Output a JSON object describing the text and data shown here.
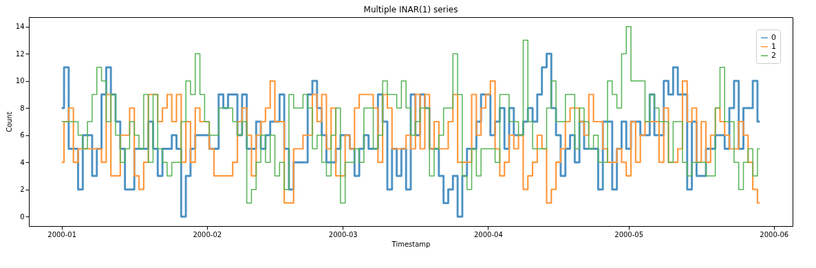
{
  "chart_data": {
    "type": "step",
    "title": "Multiple INAR(1) series",
    "xlabel": "Timestamp",
    "ylabel": "Count",
    "x": [
      "2000-01-01",
      "2000-01-02",
      "2000-01-03",
      "2000-01-04",
      "2000-01-05",
      "2000-01-06",
      "2000-01-07",
      "2000-01-08",
      "2000-01-09",
      "2000-01-10",
      "2000-01-11",
      "2000-01-12",
      "2000-01-13",
      "2000-01-14",
      "2000-01-15",
      "2000-01-16",
      "2000-01-17",
      "2000-01-18",
      "2000-01-19",
      "2000-01-20",
      "2000-01-21",
      "2000-01-22",
      "2000-01-23",
      "2000-01-24",
      "2000-01-25",
      "2000-01-26",
      "2000-01-27",
      "2000-01-28",
      "2000-01-29",
      "2000-01-30",
      "2000-01-31",
      "2000-02-01",
      "2000-02-02",
      "2000-02-03",
      "2000-02-04",
      "2000-02-05",
      "2000-02-06",
      "2000-02-07",
      "2000-02-08",
      "2000-02-09",
      "2000-02-10",
      "2000-02-11",
      "2000-02-12",
      "2000-02-13",
      "2000-02-14",
      "2000-02-15",
      "2000-02-16",
      "2000-02-17",
      "2000-02-18",
      "2000-02-19",
      "2000-02-20",
      "2000-02-21",
      "2000-02-22",
      "2000-02-23",
      "2000-02-24",
      "2000-02-25",
      "2000-02-26",
      "2000-02-27",
      "2000-02-28",
      "2000-02-29",
      "2000-03-01",
      "2000-03-02",
      "2000-03-03",
      "2000-03-04",
      "2000-03-05",
      "2000-03-06",
      "2000-03-07",
      "2000-03-08",
      "2000-03-09",
      "2000-03-10",
      "2000-03-11",
      "2000-03-12",
      "2000-03-13",
      "2000-03-14",
      "2000-03-15",
      "2000-03-16",
      "2000-03-17",
      "2000-03-18",
      "2000-03-19",
      "2000-03-20",
      "2000-03-21",
      "2000-03-22",
      "2000-03-23",
      "2000-03-24",
      "2000-03-25",
      "2000-03-26",
      "2000-03-27",
      "2000-03-28",
      "2000-03-29",
      "2000-03-30",
      "2000-03-31",
      "2000-04-01",
      "2000-04-02",
      "2000-04-03",
      "2000-04-04",
      "2000-04-05",
      "2000-04-06",
      "2000-04-07",
      "2000-04-08",
      "2000-04-09",
      "2000-04-10",
      "2000-04-11",
      "2000-04-12",
      "2000-04-13",
      "2000-04-14",
      "2000-04-15",
      "2000-04-16",
      "2000-04-17",
      "2000-04-18",
      "2000-04-19",
      "2000-04-20",
      "2000-04-21",
      "2000-04-22",
      "2000-04-23",
      "2000-04-24",
      "2000-04-25",
      "2000-04-26",
      "2000-04-27",
      "2000-04-28",
      "2000-04-29",
      "2000-04-30",
      "2000-05-01",
      "2000-05-02",
      "2000-05-03",
      "2000-05-04",
      "2000-05-05",
      "2000-05-06",
      "2000-05-07",
      "2000-05-08",
      "2000-05-09",
      "2000-05-10",
      "2000-05-11",
      "2000-05-12",
      "2000-05-13",
      "2000-05-14",
      "2000-05-15",
      "2000-05-16",
      "2000-05-17",
      "2000-05-18",
      "2000-05-19",
      "2000-05-20",
      "2000-05-21",
      "2000-05-22",
      "2000-05-23",
      "2000-05-24",
      "2000-05-25",
      "2000-05-26",
      "2000-05-27",
      "2000-05-28",
      "2000-05-29"
    ],
    "series": [
      {
        "name": "0",
        "color": "#4c92c3",
        "values": [
          8,
          11,
          5,
          5,
          2,
          6,
          6,
          3,
          5,
          9,
          11,
          9,
          7,
          5,
          2,
          2,
          5,
          5,
          5,
          7,
          5,
          3,
          5,
          5,
          6,
          5,
          0,
          3,
          5,
          6,
          6,
          6,
          5,
          5,
          9,
          8,
          9,
          9,
          6,
          9,
          5,
          5,
          7,
          5,
          6,
          7,
          7,
          9,
          5,
          2,
          4,
          4,
          4,
          9,
          10,
          8,
          6,
          4,
          4,
          5,
          6,
          6,
          5,
          3,
          5,
          6,
          5,
          5,
          9,
          7,
          2,
          5,
          3,
          5,
          2,
          9,
          6,
          9,
          8,
          5,
          5,
          3,
          1,
          2,
          3,
          0,
          3,
          5,
          5,
          7,
          9,
          9,
          6,
          7,
          8,
          5,
          8,
          6,
          6,
          7,
          8,
          7,
          9,
          11,
          12,
          8,
          6,
          3,
          5,
          6,
          4,
          7,
          5,
          5,
          5,
          2,
          7,
          7,
          2,
          5,
          7,
          5,
          7,
          7,
          6,
          6,
          9,
          6,
          6,
          10,
          9,
          11,
          9,
          9,
          2,
          7,
          3,
          3,
          5,
          5,
          6,
          6,
          5,
          8,
          10,
          5,
          8,
          8,
          10,
          7
        ]
      },
      {
        "name": "1",
        "color": "#ff993e",
        "values": [
          4,
          7,
          8,
          4,
          5,
          5,
          5,
          5,
          5,
          4,
          9,
          3,
          3,
          6,
          6,
          8,
          3,
          2,
          4,
          9,
          9,
          7,
          8,
          9,
          7,
          9,
          4,
          7,
          4,
          8,
          7,
          7,
          5,
          3,
          3,
          3,
          3,
          4,
          7,
          8,
          6,
          3,
          6,
          7,
          8,
          10,
          7,
          7,
          1,
          1,
          5,
          5,
          6,
          6,
          9,
          7,
          9,
          5,
          8,
          3,
          3,
          6,
          5,
          8,
          9,
          9,
          9,
          8,
          4,
          9,
          8,
          5,
          5,
          5,
          6,
          5,
          9,
          5,
          9,
          5,
          7,
          5,
          5,
          7,
          9,
          4,
          4,
          4,
          9,
          6,
          8,
          9,
          10,
          5,
          3,
          4,
          6,
          5,
          6,
          2,
          3,
          4,
          6,
          5,
          1,
          2,
          4,
          5,
          7,
          8,
          8,
          7,
          6,
          9,
          7,
          7,
          5,
          4,
          4,
          5,
          4,
          3,
          7,
          4,
          6,
          7,
          7,
          7,
          4,
          8,
          4,
          4,
          5,
          10,
          7,
          8,
          4,
          7,
          4,
          6,
          8,
          7,
          6,
          5,
          5,
          7,
          6,
          4,
          2,
          1
        ]
      },
      {
        "name": "2",
        "color": "#56b356",
        "values": [
          7,
          7,
          7,
          7,
          6,
          5,
          7,
          9,
          11,
          10,
          7,
          9,
          6,
          4,
          5,
          7,
          6,
          5,
          9,
          4,
          9,
          5,
          4,
          3,
          4,
          4,
          7,
          10,
          9,
          12,
          9,
          7,
          6,
          6,
          8,
          8,
          8,
          7,
          6,
          7,
          1,
          2,
          4,
          6,
          4,
          6,
          3,
          4,
          2,
          9,
          8,
          8,
          9,
          8,
          5,
          6,
          4,
          3,
          6,
          8,
          1,
          4,
          4,
          5,
          4,
          8,
          8,
          5,
          6,
          10,
          9,
          9,
          8,
          10,
          8,
          6,
          7,
          8,
          8,
          3,
          5,
          6,
          8,
          8,
          12,
          9,
          3,
          2,
          5,
          3,
          5,
          5,
          5,
          4,
          9,
          9,
          7,
          7,
          6,
          13,
          7,
          5,
          5,
          5,
          8,
          10,
          7,
          7,
          9,
          9,
          5,
          8,
          7,
          5,
          6,
          4,
          4,
          10,
          9,
          8,
          12,
          14,
          10,
          10,
          10,
          7,
          9,
          8,
          7,
          7,
          4,
          7,
          7,
          4,
          3,
          4,
          4,
          4,
          3,
          3,
          8,
          11,
          7,
          7,
          4,
          2,
          4,
          5,
          3,
          5
        ]
      }
    ],
    "xlim": [
      "1999-12-25",
      "2000-06-05"
    ],
    "xticks": [
      "2000-01",
      "2000-02",
      "2000-03",
      "2000-04",
      "2000-05",
      "2000-06"
    ],
    "ylim": [
      -0.7,
      14.7
    ],
    "yticks": [
      0,
      2,
      4,
      6,
      8,
      10,
      12,
      14
    ],
    "legend": "top right",
    "line_style": "solid"
  }
}
